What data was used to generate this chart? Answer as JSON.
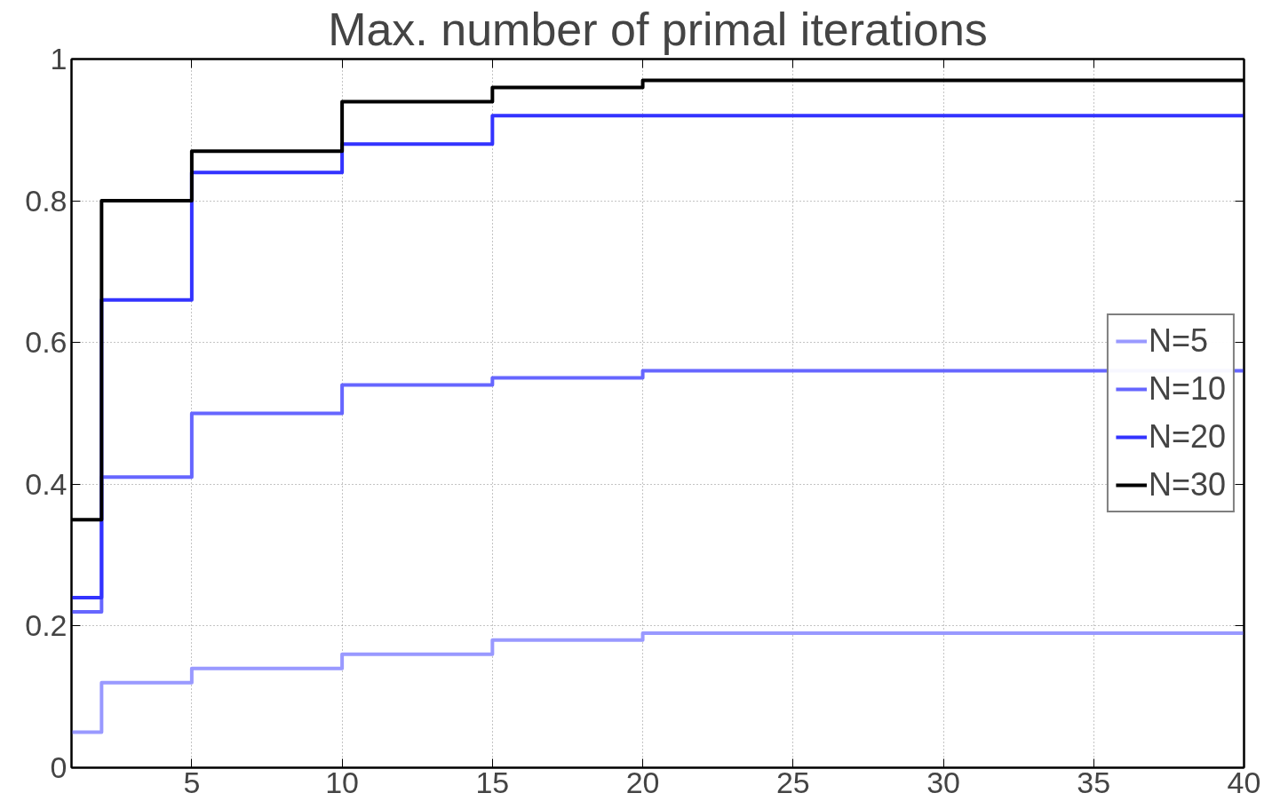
{
  "chart_data": {
    "type": "step",
    "xlabel": "Max. number of primal iterations",
    "x": [
      1,
      2,
      5,
      10,
      15,
      20,
      40
    ],
    "series": [
      {
        "name": "N=5",
        "color": "#9999ff",
        "values": [
          0.05,
          0.12,
          0.14,
          0.16,
          0.18,
          0.19,
          0.19
        ]
      },
      {
        "name": "N=10",
        "color": "#6666ff",
        "values": [
          0.22,
          0.41,
          0.5,
          0.54,
          0.55,
          0.56,
          0.56
        ]
      },
      {
        "name": "N=20",
        "color": "#3333ff",
        "values": [
          0.24,
          0.66,
          0.84,
          0.88,
          0.92,
          0.92,
          0.92
        ]
      },
      {
        "name": "N=30",
        "color": "#000000",
        "values": [
          0.35,
          0.8,
          0.87,
          0.94,
          0.96,
          0.97,
          0.97
        ]
      }
    ],
    "xlim": [
      1,
      40
    ],
    "ylim": [
      0,
      1
    ],
    "xticks": [
      5,
      10,
      15,
      20,
      25,
      30,
      35,
      40
    ],
    "yticks": [
      0,
      0.2,
      0.4,
      0.6,
      0.8,
      1
    ],
    "grid": true,
    "legend": "right",
    "line_style": "solid"
  }
}
